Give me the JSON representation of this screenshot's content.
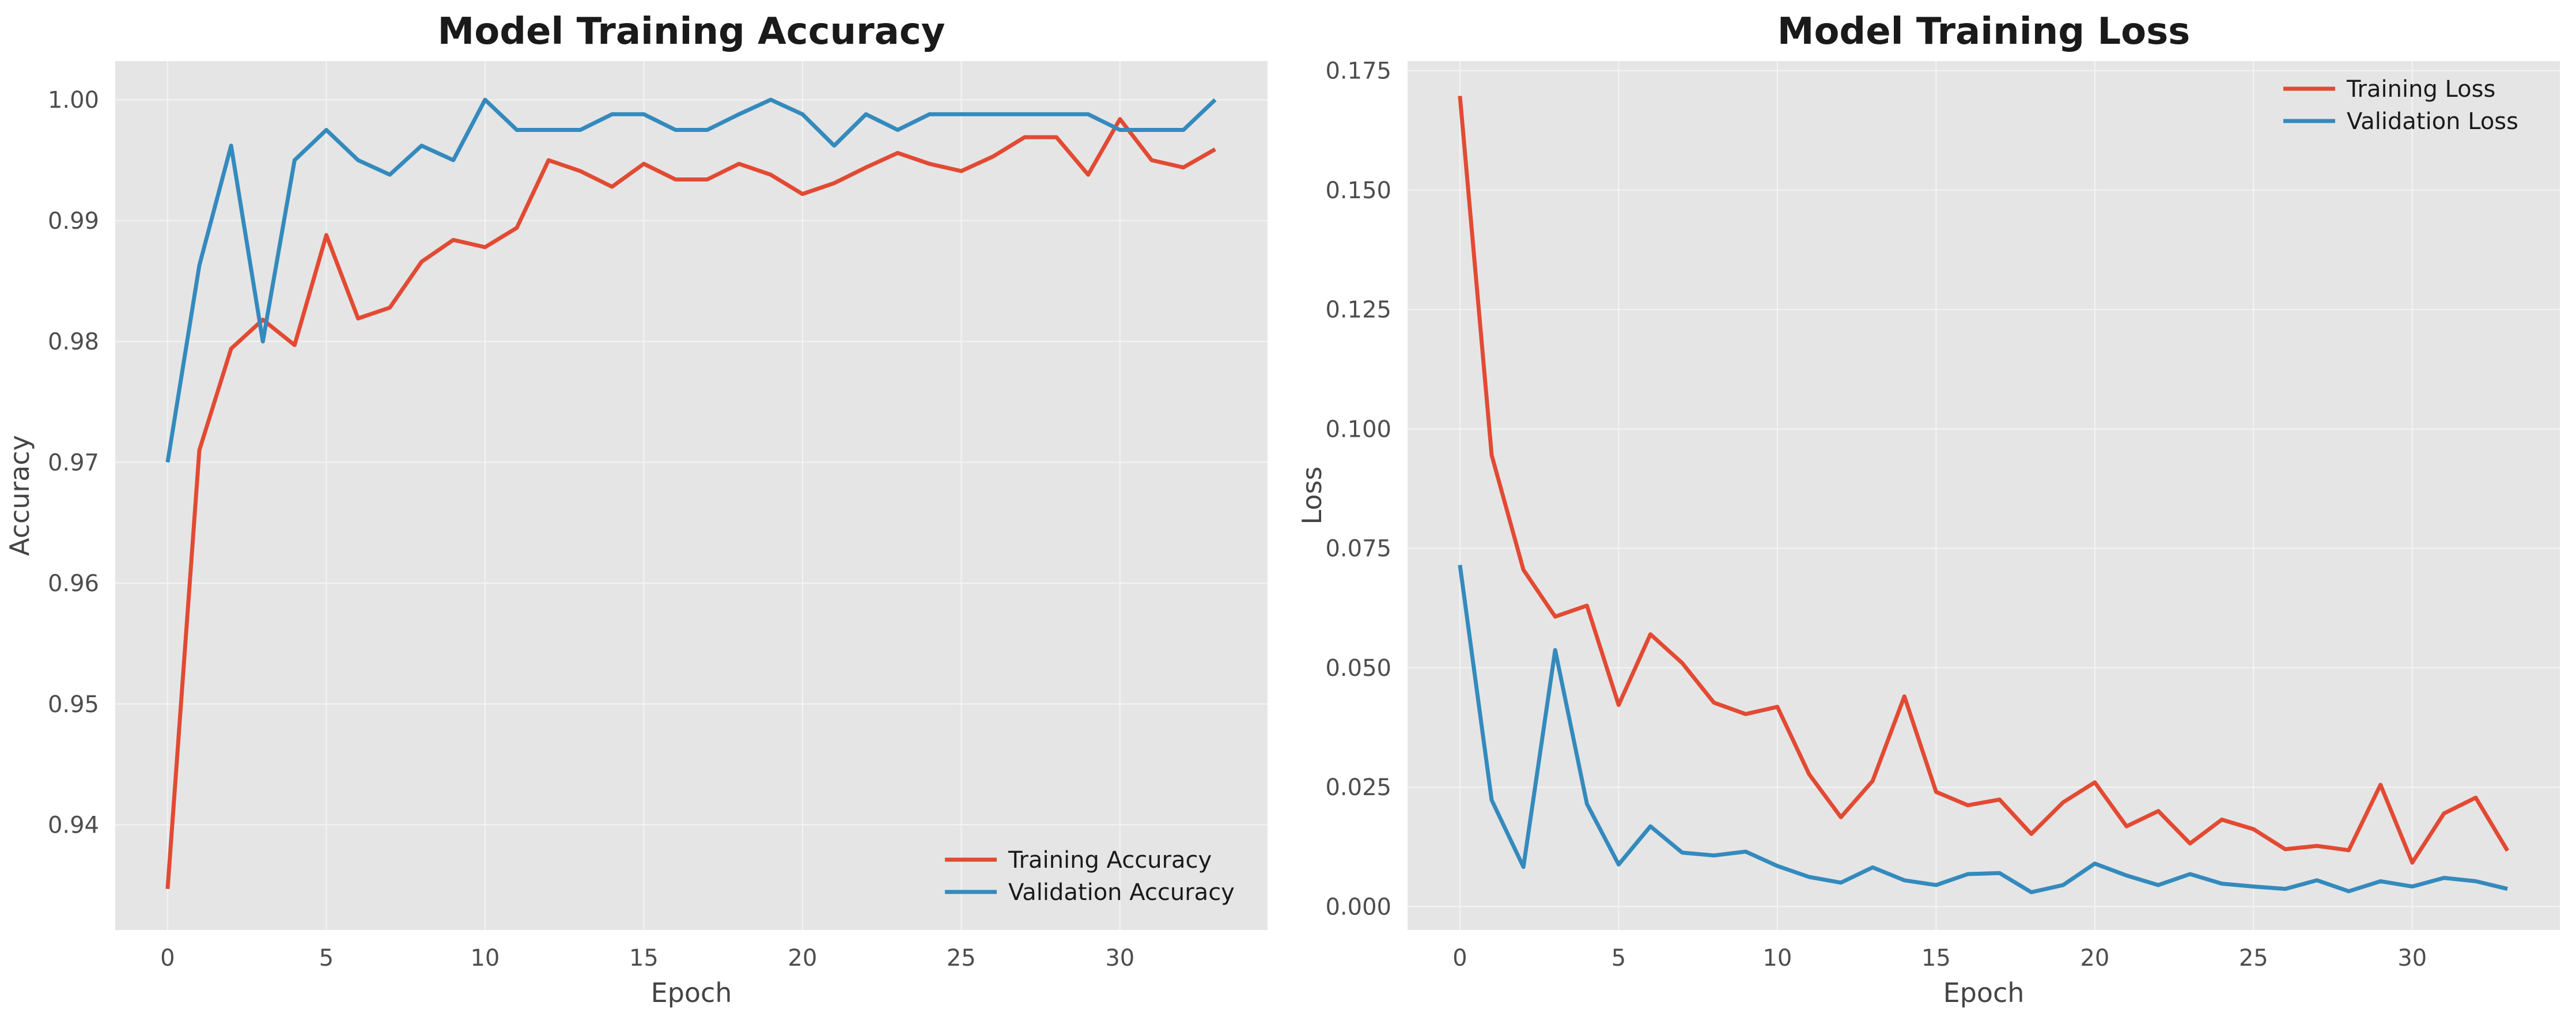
{
  "charts": [
    {
      "type": "line",
      "title": "Model Training Accuracy",
      "xlabel": "Epoch",
      "ylabel": "Accuracy",
      "xlim": [
        -1.65,
        34.65
      ],
      "ylim": [
        0.9313,
        1.0032
      ],
      "xticks": [
        0,
        5,
        10,
        15,
        20,
        25,
        30
      ],
      "yticks": [
        0.94,
        0.95,
        0.96,
        0.97,
        0.98,
        0.99,
        1.0
      ],
      "ytick_labels": [
        "0.94",
        "0.95",
        "0.96",
        "0.97",
        "0.98",
        "0.99",
        "1.00"
      ],
      "legend_loc": "lower-right",
      "grid": true,
      "series": [
        {
          "name": "Training Accuracy",
          "color": "#E24A33",
          "x": [
            0,
            1,
            2,
            3,
            4,
            5,
            6,
            7,
            8,
            9,
            10,
            11,
            12,
            13,
            14,
            15,
            16,
            17,
            18,
            19,
            20,
            21,
            22,
            23,
            24,
            25,
            26,
            27,
            28,
            29,
            30,
            31,
            32,
            33
          ],
          "values": [
            0.9347,
            0.971,
            0.9794,
            0.9818,
            0.9797,
            0.9888,
            0.9819,
            0.9828,
            0.9866,
            0.9884,
            0.9878,
            0.9894,
            0.995,
            0.9941,
            0.9928,
            0.9947,
            0.9934,
            0.9934,
            0.9947,
            0.9938,
            0.9922,
            0.9931,
            0.9944,
            0.9956,
            0.9947,
            0.9941,
            0.9953,
            0.9969,
            0.9969,
            0.9938,
            0.9984,
            0.995,
            0.9944,
            0.9959
          ]
        },
        {
          "name": "Validation Accuracy",
          "color": "#348ABD",
          "x": [
            0,
            1,
            2,
            3,
            4,
            5,
            6,
            7,
            8,
            9,
            10,
            11,
            12,
            13,
            14,
            15,
            16,
            17,
            18,
            19,
            20,
            21,
            22,
            23,
            24,
            25,
            26,
            27,
            28,
            29,
            30,
            31,
            32,
            33
          ],
          "values": [
            0.97,
            0.9863,
            0.9962,
            0.98,
            0.995,
            0.9975,
            0.995,
            0.9938,
            0.9962,
            0.995,
            1.0,
            0.9975,
            0.9975,
            0.9975,
            0.9988,
            0.9988,
            0.9975,
            0.9975,
            0.9988,
            1.0,
            0.9988,
            0.9962,
            0.9988,
            0.9975,
            0.9988,
            0.9988,
            0.9988,
            0.9988,
            0.9988,
            0.9988,
            0.9975,
            0.9975,
            0.9975,
            1.0
          ]
        }
      ]
    },
    {
      "type": "line",
      "title": "Model Training Loss",
      "xlabel": "Epoch",
      "ylabel": "Loss",
      "xlim": [
        -1.65,
        34.65
      ],
      "ylim": [
        -0.0049,
        0.177
      ],
      "xticks": [
        0,
        5,
        10,
        15,
        20,
        25,
        30
      ],
      "yticks": [
        0.0,
        0.025,
        0.05,
        0.075,
        0.1,
        0.125,
        0.15,
        0.175
      ],
      "ytick_labels": [
        "0.000",
        "0.025",
        "0.050",
        "0.075",
        "0.100",
        "0.125",
        "0.150",
        "0.175"
      ],
      "legend_loc": "upper-right",
      "grid": true,
      "series": [
        {
          "name": "Training Loss",
          "color": "#E24A33",
          "x": [
            0,
            1,
            2,
            3,
            4,
            5,
            6,
            7,
            8,
            9,
            10,
            11,
            12,
            13,
            14,
            15,
            16,
            17,
            18,
            19,
            20,
            21,
            22,
            23,
            24,
            25,
            26,
            27,
            28,
            29,
            30,
            31,
            32,
            33
          ],
          "values": [
            0.1697,
            0.0945,
            0.0705,
            0.0607,
            0.063,
            0.0422,
            0.057,
            0.051,
            0.0427,
            0.0403,
            0.0418,
            0.0277,
            0.0187,
            0.0263,
            0.044,
            0.024,
            0.0212,
            0.0224,
            0.0152,
            0.0218,
            0.026,
            0.0168,
            0.02,
            0.0132,
            0.0182,
            0.0162,
            0.012,
            0.0127,
            0.0118,
            0.0255,
            0.0092,
            0.0195,
            0.0228,
            0.0117
          ]
        },
        {
          "name": "Validation Loss",
          "color": "#348ABD",
          "x": [
            0,
            1,
            2,
            3,
            4,
            5,
            6,
            7,
            8,
            9,
            10,
            11,
            12,
            13,
            14,
            15,
            16,
            17,
            18,
            19,
            20,
            21,
            22,
            23,
            24,
            25,
            26,
            27,
            28,
            29,
            30,
            31,
            32,
            33
          ],
          "values": [
            0.0715,
            0.0223,
            0.0083,
            0.0537,
            0.0215,
            0.0088,
            0.0168,
            0.0113,
            0.0107,
            0.0115,
            0.0085,
            0.0062,
            0.005,
            0.0082,
            0.0055,
            0.0045,
            0.0068,
            0.007,
            0.003,
            0.0045,
            0.009,
            0.0065,
            0.0045,
            0.0068,
            0.0048,
            0.0042,
            0.0037,
            0.0055,
            0.0032,
            0.0053,
            0.0042,
            0.006,
            0.0053,
            0.0037
          ]
        }
      ]
    }
  ]
}
